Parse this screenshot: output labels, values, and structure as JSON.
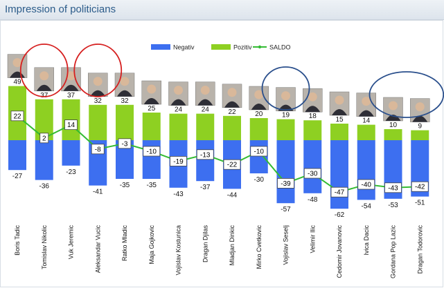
{
  "header": {
    "title": "Impression of politicians"
  },
  "colors": {
    "negative": "#3d6ff0",
    "positive": "#8ed022",
    "saldo": "#33bb33",
    "highlight_red": "#d62020",
    "highlight_blue": "#2a4f8c"
  },
  "chart_data": {
    "type": "bar",
    "categories": [
      "Boris Tadic",
      "Tomislav Nikolic",
      "Vuk Jeremic",
      "Aleksandar Vucic",
      "Ratko Mladic",
      "Maja Gojkovic",
      "Vojislav Kostunica",
      "Dragan Djilas",
      "Mladjan Dinkic",
      "Mirko Cvetkovic",
      "Vojislav Seselj",
      "Velimir Ilic",
      "Cedomir Jovanovic",
      "Ivica Dacic",
      "Gordana Pop Lazic",
      "Dragan Todorovic"
    ],
    "series": [
      {
        "name": "Negativ",
        "type": "bar",
        "values": [
          -27,
          -36,
          -23,
          -41,
          -35,
          -35,
          -43,
          -37,
          -44,
          -30,
          -57,
          -48,
          -62,
          -54,
          -53,
          -51
        ]
      },
      {
        "name": "Pozitiv",
        "type": "bar",
        "values": [
          49,
          37,
          37,
          32,
          32,
          25,
          24,
          24,
          22,
          20,
          19,
          18,
          15,
          14,
          10,
          9
        ]
      },
      {
        "name": "SALDO",
        "type": "line",
        "values": [
          22,
          2,
          14,
          -8,
          -3,
          -10,
          -19,
          -13,
          -22,
          -10,
          -39,
          -30,
          -47,
          -40,
          -43,
          -42
        ]
      }
    ],
    "legend": {
      "placement": "top-center",
      "items": [
        "Negativ",
        "Pozitiv",
        "SALDO"
      ]
    },
    "grid": false,
    "highlights": [
      {
        "shape": "ellipse",
        "color": "red",
        "around": [
          "Tomislav Nikolic"
        ]
      },
      {
        "shape": "ellipse",
        "color": "red",
        "around": [
          "Aleksandar Vucic"
        ]
      },
      {
        "shape": "ellipse",
        "color": "blue",
        "around": [
          "Vojislav Seselj"
        ]
      },
      {
        "shape": "ellipse",
        "color": "blue",
        "around": [
          "Gordana Pop Lazic",
          "Dragan Todorovic"
        ]
      }
    ]
  }
}
